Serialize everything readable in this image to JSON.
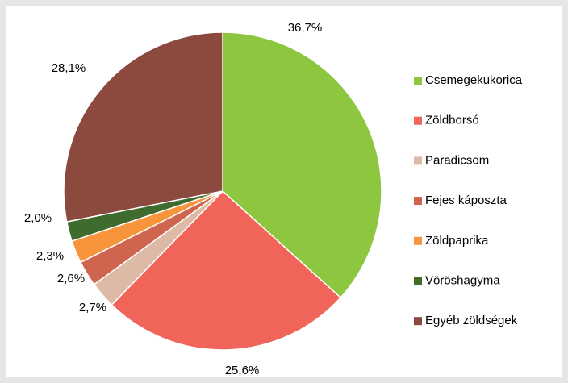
{
  "chart_data": {
    "type": "pie",
    "categories": [
      "Csemegekukorica",
      "Zöldborsó",
      "Paradicsom",
      "Fejes káposzta",
      "Zöldpaprika",
      "Vöröshagyma",
      "Egyéb zöldségek"
    ],
    "values": [
      36.7,
      25.6,
      2.7,
      2.6,
      2.3,
      2.0,
      28.1
    ],
    "value_labels": [
      "36,7%",
      "25,6%",
      "2,7%",
      "2,6%",
      "2,3%",
      "2,0%",
      "28,1%"
    ],
    "colors": [
      "#8dc63f",
      "#f0645a",
      "#dcbaa6",
      "#d0654f",
      "#f7943c",
      "#3f6b2f",
      "#8b4a3d"
    ],
    "legend": "right"
  }
}
